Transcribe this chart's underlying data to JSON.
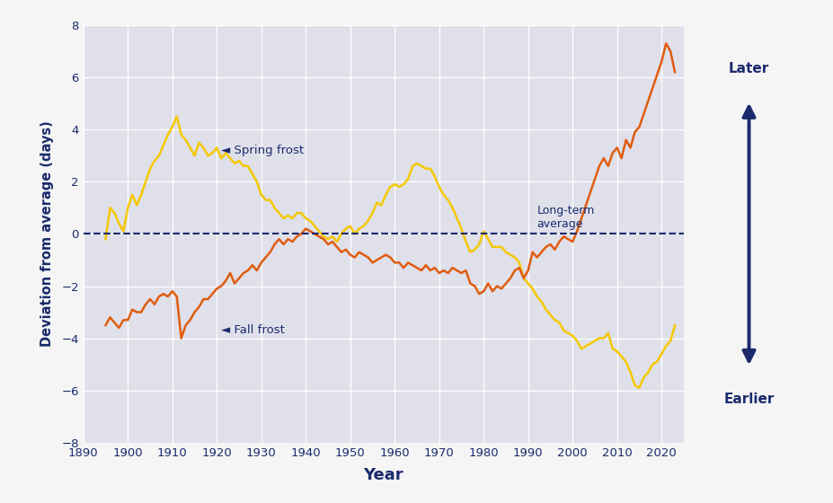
{
  "xlabel": "Year",
  "ylabel": "Deviation from average (days)",
  "bg_color": "#dfe0ea",
  "fig_bg_color": "#f5f5f5",
  "spring_color": "#F5C800",
  "fall_color": "#E05C10",
  "avg_line_color": "#1a2a6c",
  "annotation_color": "#1a2a6c",
  "xlim": [
    1895,
    2025
  ],
  "ylim": [
    -8,
    8
  ],
  "yticks": [
    -8,
    -6,
    -4,
    -2,
    0,
    2,
    4,
    6,
    8
  ],
  "xticks": [
    1890,
    1900,
    1910,
    1920,
    1930,
    1940,
    1950,
    1960,
    1970,
    1980,
    1990,
    2000,
    2010,
    2020
  ],
  "spring_frost_years": [
    1895,
    1896,
    1897,
    1898,
    1899,
    1900,
    1901,
    1902,
    1903,
    1904,
    1905,
    1906,
    1907,
    1908,
    1909,
    1910,
    1911,
    1912,
    1913,
    1914,
    1915,
    1916,
    1917,
    1918,
    1919,
    1920,
    1921,
    1922,
    1923,
    1924,
    1925,
    1926,
    1927,
    1928,
    1929,
    1930,
    1931,
    1932,
    1933,
    1934,
    1935,
    1936,
    1937,
    1938,
    1939,
    1940,
    1941,
    1942,
    1943,
    1944,
    1945,
    1946,
    1947,
    1948,
    1949,
    1950,
    1951,
    1952,
    1953,
    1954,
    1955,
    1956,
    1957,
    1958,
    1959,
    1960,
    1961,
    1962,
    1963,
    1964,
    1965,
    1966,
    1967,
    1968,
    1969,
    1970,
    1971,
    1972,
    1973,
    1974,
    1975,
    1976,
    1977,
    1978,
    1979,
    1980,
    1981,
    1982,
    1983,
    1984,
    1985,
    1986,
    1987,
    1988,
    1989,
    1990,
    1991,
    1992,
    1993,
    1994,
    1995,
    1996,
    1997,
    1998,
    1999,
    2000,
    2001,
    2002,
    2003,
    2004,
    2005,
    2006,
    2007,
    2008,
    2009,
    2010,
    2011,
    2012,
    2013,
    2014,
    2015,
    2016,
    2017,
    2018,
    2019,
    2020,
    2021,
    2022,
    2023
  ],
  "spring_frost_values": [
    -0.2,
    1.0,
    0.8,
    0.4,
    0.1,
    1.0,
    1.5,
    1.1,
    1.5,
    2.0,
    2.5,
    2.8,
    3.0,
    3.4,
    3.8,
    4.1,
    4.5,
    3.8,
    3.6,
    3.3,
    3.0,
    3.5,
    3.3,
    3.0,
    3.1,
    3.3,
    2.9,
    3.1,
    2.9,
    2.7,
    2.8,
    2.6,
    2.6,
    2.3,
    2.0,
    1.5,
    1.3,
    1.3,
    1.0,
    0.8,
    0.6,
    0.7,
    0.6,
    0.8,
    0.8,
    0.6,
    0.5,
    0.3,
    0.1,
    -0.1,
    -0.2,
    -0.1,
    -0.3,
    0.0,
    0.2,
    0.3,
    0.0,
    0.2,
    0.3,
    0.5,
    0.8,
    1.2,
    1.1,
    1.5,
    1.8,
    1.9,
    1.8,
    1.9,
    2.1,
    2.6,
    2.7,
    2.6,
    2.5,
    2.5,
    2.2,
    1.8,
    1.5,
    1.3,
    1.0,
    0.6,
    0.2,
    -0.3,
    -0.7,
    -0.6,
    -0.4,
    0.1,
    -0.2,
    -0.5,
    -0.5,
    -0.5,
    -0.7,
    -0.8,
    -0.9,
    -1.1,
    -1.7,
    -1.9,
    -2.1,
    -2.4,
    -2.6,
    -2.9,
    -3.1,
    -3.3,
    -3.4,
    -3.7,
    -3.8,
    -3.9,
    -4.1,
    -4.4,
    -4.3,
    -4.2,
    -4.1,
    -4.0,
    -4.0,
    -3.8,
    -4.4,
    -4.5,
    -4.7,
    -4.9,
    -5.3,
    -5.8,
    -5.9,
    -5.5,
    -5.3,
    -5.0,
    -4.9,
    -4.6,
    -4.3,
    -4.1,
    -3.5
  ],
  "fall_frost_years": [
    1895,
    1896,
    1897,
    1898,
    1899,
    1900,
    1901,
    1902,
    1903,
    1904,
    1905,
    1906,
    1907,
    1908,
    1909,
    1910,
    1911,
    1912,
    1913,
    1914,
    1915,
    1916,
    1917,
    1918,
    1919,
    1920,
    1921,
    1922,
    1923,
    1924,
    1925,
    1926,
    1927,
    1928,
    1929,
    1930,
    1931,
    1932,
    1933,
    1934,
    1935,
    1936,
    1937,
    1938,
    1939,
    1940,
    1941,
    1942,
    1943,
    1944,
    1945,
    1946,
    1947,
    1948,
    1949,
    1950,
    1951,
    1952,
    1953,
    1954,
    1955,
    1956,
    1957,
    1958,
    1959,
    1960,
    1961,
    1962,
    1963,
    1964,
    1965,
    1966,
    1967,
    1968,
    1969,
    1970,
    1971,
    1972,
    1973,
    1974,
    1975,
    1976,
    1977,
    1978,
    1979,
    1980,
    1981,
    1982,
    1983,
    1984,
    1985,
    1986,
    1987,
    1988,
    1989,
    1990,
    1991,
    1992,
    1993,
    1994,
    1995,
    1996,
    1997,
    1998,
    1999,
    2000,
    2001,
    2002,
    2003,
    2004,
    2005,
    2006,
    2007,
    2008,
    2009,
    2010,
    2011,
    2012,
    2013,
    2014,
    2015,
    2016,
    2017,
    2018,
    2019,
    2020,
    2021,
    2022,
    2023
  ],
  "fall_frost_values": [
    -3.5,
    -3.2,
    -3.4,
    -3.6,
    -3.3,
    -3.3,
    -2.9,
    -3.0,
    -3.0,
    -2.7,
    -2.5,
    -2.7,
    -2.4,
    -2.3,
    -2.4,
    -2.2,
    -2.4,
    -4.0,
    -3.5,
    -3.3,
    -3.0,
    -2.8,
    -2.5,
    -2.5,
    -2.3,
    -2.1,
    -2.0,
    -1.8,
    -1.5,
    -1.9,
    -1.7,
    -1.5,
    -1.4,
    -1.2,
    -1.4,
    -1.1,
    -0.9,
    -0.7,
    -0.4,
    -0.2,
    -0.4,
    -0.2,
    -0.3,
    -0.1,
    0.0,
    0.2,
    0.1,
    0.0,
    -0.1,
    -0.2,
    -0.4,
    -0.3,
    -0.5,
    -0.7,
    -0.6,
    -0.8,
    -0.9,
    -0.7,
    -0.8,
    -0.9,
    -1.1,
    -1.0,
    -0.9,
    -0.8,
    -0.9,
    -1.1,
    -1.1,
    -1.3,
    -1.1,
    -1.2,
    -1.3,
    -1.4,
    -1.2,
    -1.4,
    -1.3,
    -1.5,
    -1.4,
    -1.5,
    -1.3,
    -1.4,
    -1.5,
    -1.4,
    -1.9,
    -2.0,
    -2.3,
    -2.2,
    -1.9,
    -2.2,
    -2.0,
    -2.1,
    -1.9,
    -1.7,
    -1.4,
    -1.3,
    -1.7,
    -1.4,
    -0.7,
    -0.9,
    -0.7,
    -0.5,
    -0.4,
    -0.6,
    -0.3,
    -0.1,
    -0.2,
    -0.3,
    0.1,
    0.6,
    1.1,
    1.6,
    2.1,
    2.6,
    2.9,
    2.6,
    3.1,
    3.3,
    2.9,
    3.6,
    3.3,
    3.9,
    4.1,
    4.6,
    5.1,
    5.6,
    6.1,
    6.6,
    7.3,
    7.0,
    6.2
  ]
}
